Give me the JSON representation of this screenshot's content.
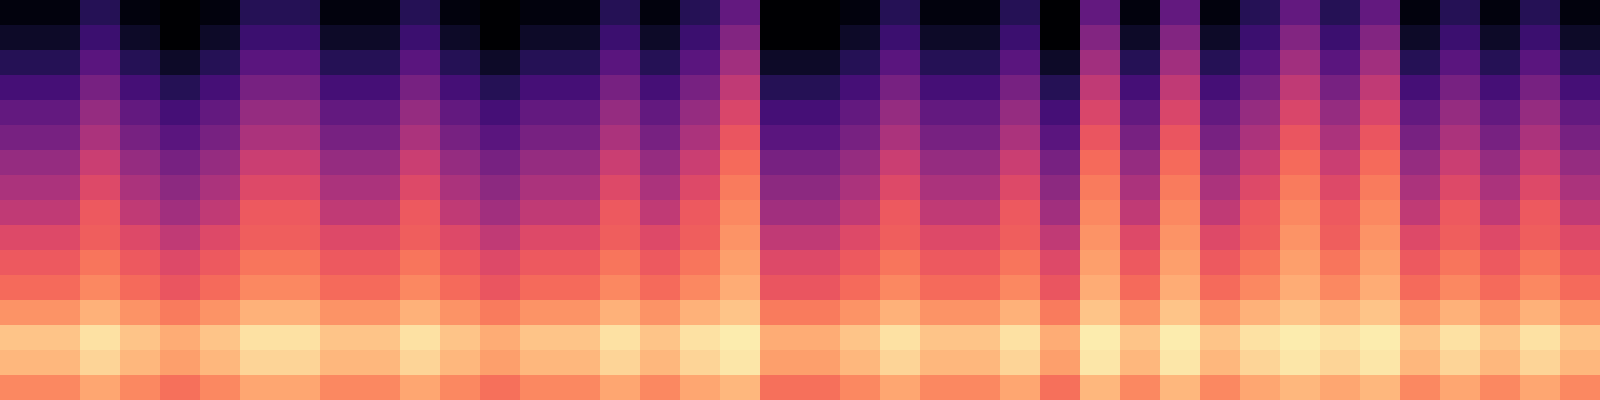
{
  "chart_data": {
    "type": "heatmap",
    "color": "magma",
    "tick_labels": false,
    "color_range": [
      -80,
      0
    ],
    "cells": [
      [
        -78,
        -78,
        -68,
        -78,
        -80,
        -78,
        -68,
        -68,
        -78,
        -78,
        -68,
        -78,
        -80,
        -78,
        -78,
        -68,
        -78,
        -68,
        -56,
        -80,
        -80,
        -78,
        -68,
        -78,
        -78,
        -68,
        -80,
        -56,
        -78,
        -56,
        -78,
        -68,
        -56,
        -68,
        -56,
        -78,
        -68,
        -78,
        -68,
        -78
      ],
      [
        -74,
        -74,
        -64,
        -74,
        -80,
        -74,
        -64,
        -64,
        -74,
        -74,
        -64,
        -74,
        -80,
        -74,
        -74,
        -64,
        -74,
        -64,
        -50,
        -80,
        -80,
        -74,
        -64,
        -74,
        -74,
        -64,
        -80,
        -50,
        -74,
        -50,
        -74,
        -64,
        -50,
        -64,
        -50,
        -74,
        -64,
        -74,
        -64,
        -74
      ],
      [
        -68,
        -68,
        -58,
        -68,
        -74,
        -68,
        -58,
        -58,
        -68,
        -68,
        -58,
        -68,
        -74,
        -68,
        -68,
        -58,
        -68,
        -58,
        -44,
        -74,
        -74,
        -68,
        -58,
        -68,
        -68,
        -58,
        -74,
        -44,
        -68,
        -44,
        -68,
        -58,
        -44,
        -58,
        -44,
        -68,
        -58,
        -68,
        -58,
        -68
      ],
      [
        -62,
        -62,
        -52,
        -62,
        -68,
        -62,
        -52,
        -52,
        -62,
        -62,
        -52,
        -62,
        -68,
        -62,
        -62,
        -52,
        -62,
        -52,
        -38,
        -68,
        -68,
        -62,
        -52,
        -62,
        -62,
        -52,
        -68,
        -38,
        -62,
        -38,
        -62,
        -52,
        -38,
        -52,
        -38,
        -62,
        -52,
        -62,
        -52,
        -62
      ],
      [
        -56,
        -56,
        -46,
        -56,
        -62,
        -56,
        -46,
        -46,
        -56,
        -56,
        -46,
        -56,
        -62,
        -56,
        -56,
        -46,
        -56,
        -46,
        -33,
        -62,
        -62,
        -56,
        -46,
        -56,
        -56,
        -46,
        -62,
        -33,
        -56,
        -33,
        -56,
        -46,
        -33,
        -46,
        -33,
        -56,
        -46,
        -56,
        -46,
        -56
      ],
      [
        -52,
        -52,
        -42,
        -52,
        -58,
        -52,
        -42,
        -42,
        -52,
        -52,
        -42,
        -52,
        -58,
        -52,
        -52,
        -42,
        -52,
        -42,
        -29,
        -58,
        -58,
        -52,
        -42,
        -52,
        -52,
        -42,
        -58,
        -29,
        -52,
        -29,
        -52,
        -42,
        -29,
        -42,
        -29,
        -52,
        -42,
        -52,
        -42,
        -52
      ],
      [
        -46,
        -46,
        -36,
        -46,
        -52,
        -46,
        -36,
        -36,
        -46,
        -46,
        -36,
        -46,
        -52,
        -46,
        -46,
        -36,
        -46,
        -36,
        -25,
        -52,
        -52,
        -46,
        -36,
        -46,
        -46,
        -36,
        -52,
        -25,
        -46,
        -25,
        -46,
        -36,
        -25,
        -36,
        -25,
        -46,
        -36,
        -46,
        -36,
        -46
      ],
      [
        -42,
        -42,
        -32,
        -42,
        -48,
        -42,
        -32,
        -32,
        -42,
        -42,
        -32,
        -42,
        -48,
        -42,
        -42,
        -32,
        -42,
        -32,
        -22,
        -48,
        -48,
        -42,
        -32,
        -42,
        -42,
        -32,
        -48,
        -22,
        -42,
        -22,
        -42,
        -32,
        -22,
        -32,
        -22,
        -42,
        -32,
        -42,
        -32,
        -42
      ],
      [
        -38,
        -38,
        -28,
        -38,
        -44,
        -38,
        -28,
        -28,
        -38,
        -38,
        -28,
        -38,
        -44,
        -38,
        -38,
        -28,
        -38,
        -28,
        -20,
        -44,
        -44,
        -38,
        -28,
        -38,
        -38,
        -28,
        -44,
        -20,
        -38,
        -20,
        -38,
        -28,
        -20,
        -28,
        -20,
        -38,
        -28,
        -38,
        -28,
        -38
      ],
      [
        -32,
        -32,
        -27,
        -32,
        -38,
        -32,
        -27,
        -27,
        -32,
        -32,
        -27,
        -32,
        -38,
        -32,
        -32,
        -27,
        -32,
        -27,
        -18,
        -38,
        -38,
        -32,
        -27,
        -32,
        -32,
        -27,
        -38,
        -18,
        -32,
        -18,
        -32,
        -27,
        -18,
        -27,
        -18,
        -32,
        -27,
        -32,
        -27,
        -32
      ],
      [
        -28,
        -28,
        -23,
        -28,
        -32,
        -28,
        -23,
        -23,
        -28,
        -28,
        -23,
        -28,
        -32,
        -28,
        -28,
        -23,
        -28,
        -23,
        -16,
        -32,
        -32,
        -28,
        -23,
        -28,
        -28,
        -23,
        -32,
        -16,
        -28,
        -16,
        -28,
        -23,
        -16,
        -23,
        -16,
        -28,
        -23,
        -28,
        -23,
        -28
      ],
      [
        -25,
        -25,
        -20,
        -25,
        -29,
        -25,
        -20,
        -20,
        -25,
        -25,
        -20,
        -25,
        -29,
        -25,
        -25,
        -20,
        -25,
        -20,
        -14,
        -29,
        -29,
        -25,
        -20,
        -25,
        -25,
        -20,
        -29,
        -14,
        -25,
        -14,
        -25,
        -20,
        -14,
        -20,
        -14,
        -25,
        -20,
        -25,
        -20,
        -25
      ],
      [
        -18,
        -18,
        -13,
        -18,
        -22,
        -18,
        -13,
        -13,
        -18,
        -18,
        -13,
        -18,
        -22,
        -18,
        -18,
        -13,
        -18,
        -13,
        -10,
        -22,
        -22,
        -18,
        -13,
        -18,
        -18,
        -13,
        -22,
        -10,
        -18,
        -10,
        -18,
        -13,
        -10,
        -13,
        -10,
        -18,
        -13,
        -18,
        -13,
        -18
      ],
      [
        -10,
        -10,
        -5,
        -10,
        -14,
        -10,
        -5,
        -5,
        -10,
        -10,
        -5,
        -10,
        -14,
        -10,
        -10,
        -5,
        -10,
        -5,
        -3,
        -14,
        -14,
        -10,
        -5,
        -10,
        -10,
        -5,
        -14,
        -3,
        -10,
        -3,
        -10,
        -5,
        -3,
        -5,
        -3,
        -10,
        -5,
        -10,
        -5,
        -10
      ],
      [
        -12,
        -12,
        -7,
        -12,
        -16,
        -12,
        -7,
        -7,
        -12,
        -12,
        -7,
        -12,
        -16,
        -12,
        -12,
        -7,
        -12,
        -7,
        -4,
        -16,
        -16,
        -12,
        -7,
        -12,
        -12,
        -7,
        -16,
        -4,
        -12,
        -4,
        -12,
        -7,
        -4,
        -7,
        -4,
        -12,
        -7,
        -12,
        -7,
        -12
      ],
      [
        -20,
        -20,
        -15,
        -20,
        -24,
        -20,
        -15,
        -15,
        -20,
        -20,
        -15,
        -20,
        -24,
        -20,
        -20,
        -15,
        -20,
        -15,
        -12,
        -24,
        -24,
        -20,
        -15,
        -20,
        -20,
        -15,
        -24,
        -12,
        -20,
        -12,
        -20,
        -15,
        -12,
        -15,
        -12,
        -20,
        -15,
        -20,
        -15,
        -20
      ]
    ]
  }
}
